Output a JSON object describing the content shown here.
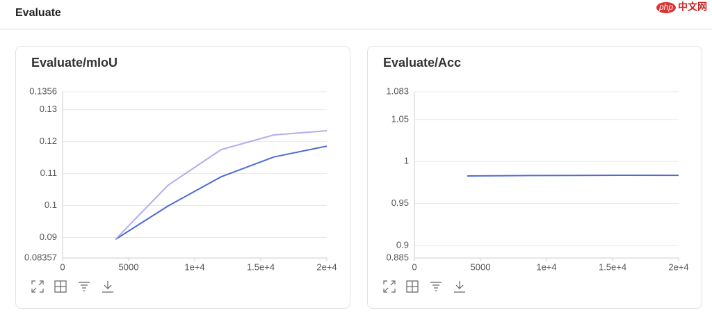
{
  "header": {
    "title": "Evaluate"
  },
  "watermark": {
    "logo": "php",
    "text": "中文网"
  },
  "chart_data": [
    {
      "type": "line",
      "title": "Evaluate/mIoU",
      "x": [
        4000,
        8000,
        12000,
        16000,
        20000
      ],
      "series": [
        {
          "color": "#4e6ad6",
          "values": [
            0.0894,
            0.0999,
            0.109,
            0.1152,
            0.1186
          ]
        },
        {
          "color": "#b5acee",
          "values": [
            0.0894,
            0.1064,
            0.1175,
            0.1221,
            0.1234
          ]
        }
      ],
      "xlim": [
        0,
        20000
      ],
      "xticks": [
        0,
        5000,
        {
          "value": 10000,
          "label": "1e+4"
        },
        {
          "value": 15000,
          "label": "1.5e+4"
        },
        {
          "value": 20000,
          "label": "2e+4"
        }
      ],
      "ylim": [
        0.08357,
        0.1356
      ],
      "yticks": [
        0.08357,
        0.09,
        0.1,
        0.11,
        0.12,
        0.13,
        0.1356
      ],
      "grid": true
    },
    {
      "type": "line",
      "title": "Evaluate/Acc",
      "x": [
        4000,
        8000,
        12000,
        16000,
        20000
      ],
      "series": [
        {
          "color": "#4e6ad6",
          "values": [
            0.9828,
            0.9832,
            0.9834,
            0.9836,
            0.9835
          ]
        }
      ],
      "xlim": [
        0,
        20000
      ],
      "xticks": [
        0,
        5000,
        {
          "value": 10000,
          "label": "1e+4"
        },
        {
          "value": 15000,
          "label": "1.5e+4"
        },
        {
          "value": 20000,
          "label": "2e+4"
        }
      ],
      "ylim": [
        0.885,
        1.083
      ],
      "yticks": [
        0.885,
        0.9,
        0.95,
        1,
        1.05,
        1.083
      ],
      "grid": true
    }
  ]
}
